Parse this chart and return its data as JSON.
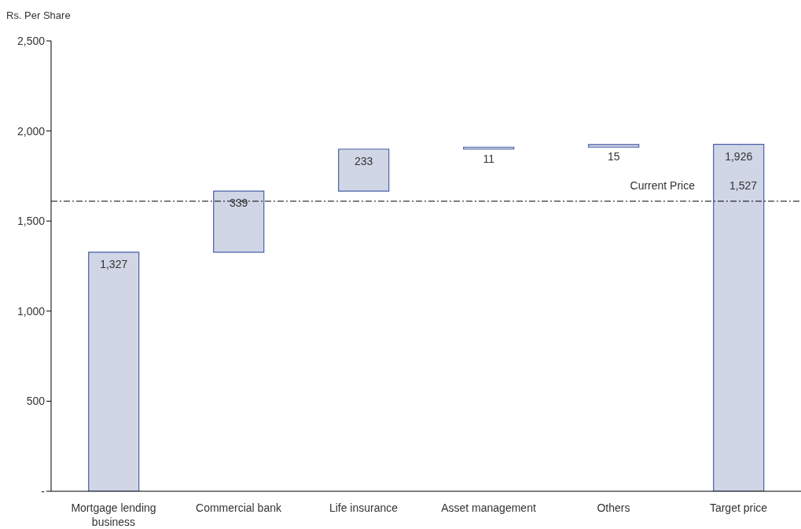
{
  "chart_data": {
    "type": "bar",
    "ylabel": "Rs. Per Share",
    "categories": [
      "Mortgage lending business",
      "Commercial bank",
      "Life insurance",
      "Asset management",
      "Others",
      "Target price"
    ],
    "values": [
      1327,
      339,
      233,
      11,
      15,
      1926
    ],
    "base": [
      0,
      1327,
      1666,
      1899,
      1910,
      0
    ],
    "value_labels": [
      "1,327",
      "339",
      "233",
      "11",
      "15",
      "1,926"
    ],
    "color": "#d0d6e6",
    "ylim": [
      0,
      2500
    ],
    "yticks": [
      {
        "value": 0,
        "label": "-"
      },
      {
        "value": 500,
        "label": "500"
      },
      {
        "value": 1000,
        "label": "1,000"
      },
      {
        "value": 1500,
        "label": "1,500"
      },
      {
        "value": 2000,
        "label": "2,000"
      },
      {
        "value": 2500,
        "label": "2,500"
      }
    ],
    "grid": false,
    "ref_lines": [
      {
        "axis": "y",
        "value": 1610,
        "label": "Current Price",
        "line_style": "dashdot",
        "color": "#000000"
      }
    ],
    "annotations": [
      "1,527"
    ]
  }
}
